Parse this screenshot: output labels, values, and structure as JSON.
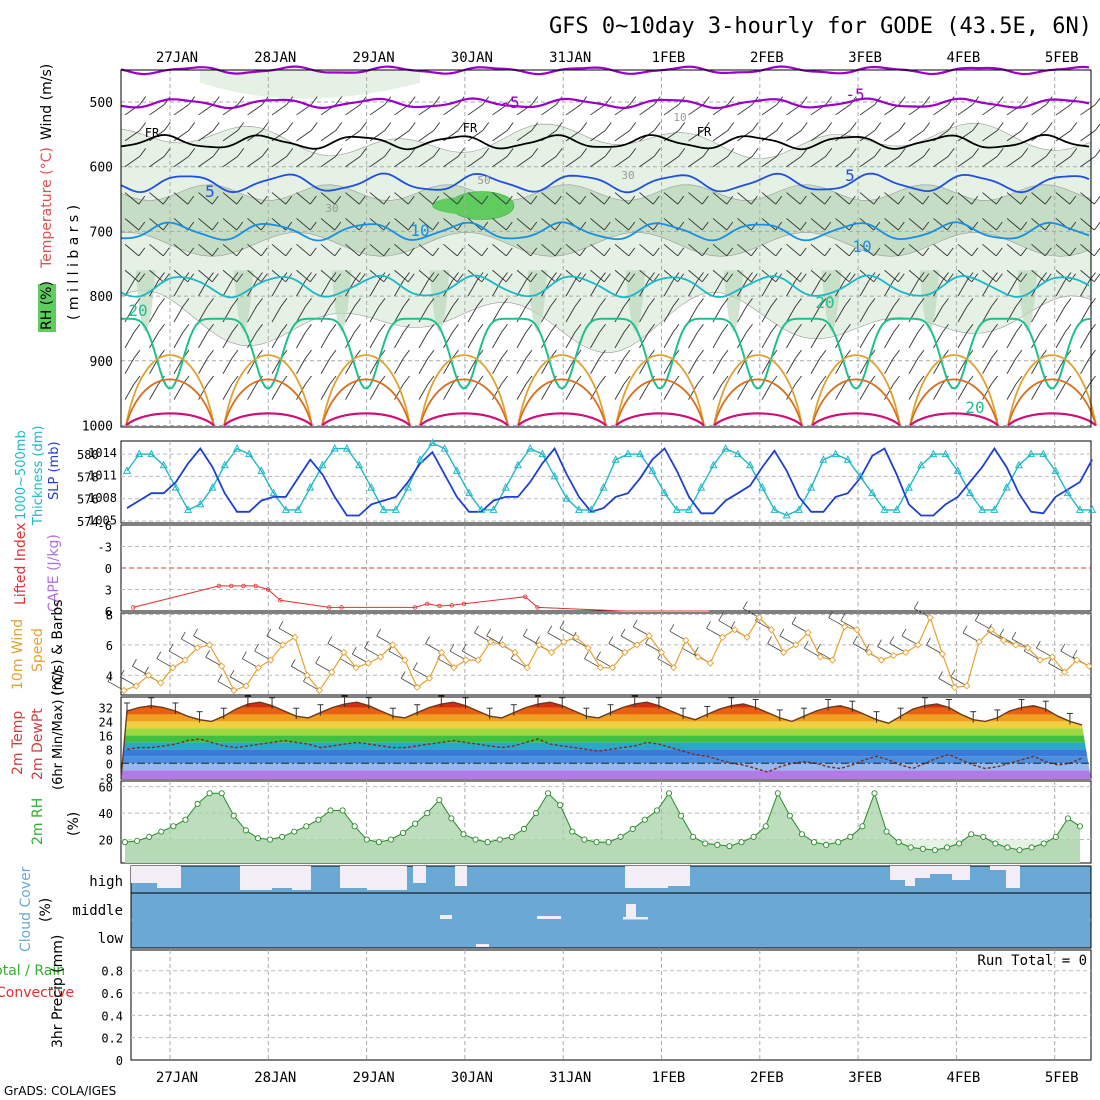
{
  "title": "GFS 0~10day 3-hourly for GODE (43.5E, 6N)",
  "footer": "GrADS: COLA/IGES",
  "dates": [
    "27JAN",
    "28JAN",
    "29JAN",
    "30JAN",
    "31JAN",
    "1FEB",
    "2FEB",
    "3FEB",
    "4FEB",
    "5FEB"
  ],
  "colors": {
    "temp_minus5": "#9a00c8",
    "temp_fr": "#000000",
    "temp_5": "#1f4fe0",
    "temp_10": "#1a8ee0",
    "temp_15": "#1ab8c8",
    "temp_20": "#1fbf8f",
    "temp_25": "#e0a030",
    "temp_30": "#d87020",
    "temp_35": "#d0107a",
    "rh_light": "#e4f1e4",
    "rh_mid": "#bcd8bc",
    "rh_dark": "#60cc60",
    "slp": "#1f3fd0",
    "thickness": "#20b8c8",
    "lifted": "#e03030",
    "wind_speed": "#e8a030",
    "cloud": "#6aa8d6",
    "rh2m": "#30b030"
  },
  "panels": {
    "upper_air": {
      "ylabel_rh": "RH (%)",
      "ylabel_temp": "Temperature (°C)",
      "ylabel_wind": "Wind (m/s)",
      "ylabel_units": "( m i l l i b a r s )",
      "yticks": [
        500,
        600,
        700,
        800,
        900,
        1000
      ],
      "labels": {
        "minus5a": "-5",
        "minus5b": "-5",
        "fr1": "FR",
        "fr2": "FR",
        "fr3": "FR",
        "t5a": "5",
        "t5b": "5",
        "t10a": "10",
        "t10b": "10",
        "t20a": "20",
        "t20b": "20",
        "t20c": "20",
        "rh10": "10",
        "rh30a": "30",
        "rh30b": "30",
        "rh50": "50"
      }
    },
    "slp_thickness": {
      "ylabel_thick": "Thickness (dm)",
      "ylabel_range": "1000~500mb",
      "ylabel_slp": "SLP (mb)",
      "left_ticks": [
        "580",
        "578",
        "576",
        "574"
      ],
      "right_ticks": [
        "1014",
        "1011",
        "1008",
        "1005"
      ]
    },
    "cape_li": {
      "ylabel_li": "Lifted Index",
      "ylabel_cape": "CAPE (J/kg)",
      "ticks": [
        "-6",
        "-3",
        "0",
        "3",
        "6"
      ]
    },
    "wind10m": {
      "ylabel_a": "10m Wind",
      "ylabel_b": "Speed",
      "ylabel_c": "(m/s) & Barbs",
      "ticks": [
        "8",
        "6",
        "4"
      ]
    },
    "temp2m": {
      "ylabel_a": "2m Temp",
      "ylabel_b": "2m DewPt",
      "ylabel_c": "(6hr Min/Max) (°C)",
      "ticks": [
        "32",
        "24",
        "16",
        "8",
        "0",
        "-8"
      ]
    },
    "rh2m": {
      "ylabel_a": "2m RH",
      "ylabel_b": "(%)",
      "ticks": [
        "60",
        "40",
        "20"
      ]
    },
    "cloud": {
      "ylabel_a": "Cloud Cover",
      "ylabel_b": "(%)",
      "levels": [
        "high",
        "middle",
        "low"
      ]
    },
    "precip": {
      "ylabel_a": "Total / Rain",
      "ylabel_b": "Convective",
      "ylabel_c": "3hr Precip (mm)",
      "ticks": [
        "0.8",
        "0.6",
        "0.4",
        "0.2",
        "0"
      ],
      "run_total": "Run Total = 0"
    }
  },
  "chart_data": [
    {
      "type": "line",
      "title": "Thickness 1000~500mb (dm) & SLP (mb)",
      "x": [
        0,
        3,
        6,
        9,
        12,
        15,
        18,
        21,
        24,
        27,
        30,
        33,
        36,
        39,
        42,
        45,
        48,
        51,
        54,
        57,
        60,
        63,
        66,
        69,
        72,
        75,
        78,
        81,
        84,
        87,
        90,
        93,
        96,
        99,
        102,
        105,
        108,
        111,
        114,
        117,
        120,
        123,
        126,
        129,
        132,
        135,
        138,
        141,
        144,
        147,
        150,
        153,
        156,
        159,
        162,
        165,
        168,
        171,
        174,
        177,
        180,
        183,
        186,
        189,
        192,
        195,
        198,
        201,
        204,
        207,
        210,
        213,
        216,
        219,
        222,
        225,
        228,
        231,
        234,
        237
      ],
      "series": [
        {
          "name": "SLP (mb)",
          "values": [
            1006.5,
            1007.5,
            1008.5,
            1008.5,
            1010,
            1012.5,
            1014.5,
            1012,
            1008.5,
            1006,
            1006,
            1007.5,
            1008,
            1008,
            1010.5,
            1013,
            1011,
            1008,
            1005.5,
            1005.5,
            1007,
            1007.5,
            1008,
            1010,
            1012.5,
            1014,
            1011,
            1008,
            1006,
            1006,
            1007.5,
            1008,
            1008,
            1010,
            1012.5,
            1014.5,
            1011,
            1008,
            1006,
            1006.5,
            1008,
            1008.5,
            1010.5,
            1013,
            1014.5,
            1011.5,
            1008,
            1005.8,
            1005.8,
            1007.5,
            1008.5,
            1009.5,
            1012,
            1014.2,
            1011.5,
            1008,
            1006,
            1006,
            1008,
            1008.5,
            1010.5,
            1013.5,
            1014.5,
            1011,
            1007,
            1005.5,
            1005.5,
            1007,
            1008,
            1010,
            1012,
            1014.5,
            1012,
            1008.5,
            1006,
            1005.8,
            1008,
            1009,
            1010,
            1013
          ]
        },
        {
          "name": "Thickness (dm)",
          "values": [
            578.5,
            580,
            580,
            579,
            577,
            575,
            575.5,
            577,
            579,
            580.5,
            580,
            578.5,
            576.5,
            575,
            575,
            577,
            579,
            580.5,
            580.5,
            579,
            577,
            575,
            575,
            577,
            579.5,
            581,
            580.5,
            578.5,
            576.5,
            575,
            575,
            577,
            579,
            580.5,
            580,
            578,
            576,
            575,
            575,
            577,
            579.5,
            580,
            580,
            578.5,
            576.5,
            575,
            575,
            577,
            579,
            580.5,
            580,
            579,
            577,
            575,
            574.5,
            575,
            577,
            579.5,
            580,
            579.5,
            578,
            576.5,
            575,
            575,
            577,
            579,
            580,
            580,
            578.5,
            576.5,
            575,
            575,
            577,
            579,
            580,
            580,
            578.5,
            576.5,
            575,
            575
          ]
        }
      ],
      "xlabel": "",
      "ylim_thickness": [
        574,
        582
      ],
      "ylim_slp": [
        1005,
        1015.5
      ]
    },
    {
      "type": "line",
      "title": "Lifted Index & CAPE",
      "series": [
        {
          "name": "Lifted Index",
          "points": [
            [
              0,
              5.5
            ],
            [
              21,
              2.5
            ],
            [
              24,
              2.5
            ],
            [
              27,
              2.5
            ],
            [
              30,
              2.5
            ],
            [
              33,
              3
            ],
            [
              36,
              4.5
            ],
            [
              48,
              5.5
            ],
            [
              51,
              5.5
            ],
            [
              69,
              5.5
            ],
            [
              72,
              5
            ],
            [
              75,
              5.3
            ],
            [
              78,
              5.2
            ],
            [
              81,
              5
            ],
            [
              96,
              4
            ],
            [
              99,
              5.5
            ],
            [
              120,
              6
            ],
            [
              141,
              6
            ]
          ]
        }
      ],
      "ylim": [
        -6,
        6
      ]
    },
    {
      "type": "line",
      "title": "10m Wind Speed (m/s)",
      "x_step_hours": 3,
      "series": [
        {
          "name": "Wind Speed",
          "values": [
            3,
            3.3,
            4,
            3.5,
            4.5,
            5,
            5.8,
            6,
            4.6,
            3,
            3.3,
            4.5,
            5,
            6,
            6.5,
            4,
            3,
            4.2,
            5.5,
            4.5,
            4.8,
            5.2,
            6,
            5,
            3.2,
            3.8,
            5.5,
            4.5,
            5,
            5,
            6.2,
            6,
            5.5,
            4.5,
            6,
            5.5,
            6.2,
            6.5,
            5.8,
            4.5,
            4.5,
            5.5,
            6,
            6.6,
            5.5,
            4.5,
            6.3,
            5.2,
            4.8,
            6.5,
            7,
            6.5,
            7.8,
            7,
            5.5,
            6,
            6.8,
            5.2,
            5,
            7.2,
            7,
            5.5,
            5,
            5.3,
            5.5,
            6,
            7.8,
            5.4,
            3.2,
            3.3,
            6.2,
            7,
            6.3,
            6,
            5.8,
            5,
            5.2,
            4.2,
            5,
            4.6
          ]
        }
      ],
      "ylim": [
        2.5,
        8
      ]
    },
    {
      "type": "area",
      "title": "2m Temp & DewPt (°C)",
      "x_step_hours": 3,
      "series": [
        {
          "name": "2m Temp",
          "values": [
            30,
            32,
            33,
            32,
            30,
            27,
            25,
            24,
            27,
            31,
            34,
            35,
            33,
            30,
            27,
            26,
            29,
            32,
            34,
            35,
            33,
            30,
            27,
            26,
            29,
            32,
            34,
            35,
            33,
            30,
            27,
            26,
            29,
            32,
            34,
            35,
            33,
            30,
            27,
            26,
            29,
            32,
            34,
            35,
            33,
            30,
            27,
            25,
            28,
            31,
            33,
            34,
            32,
            29,
            26,
            24,
            27,
            30,
            32,
            33,
            31,
            28,
            25,
            23,
            27,
            31,
            33,
            34,
            32,
            28,
            25,
            24,
            26,
            30,
            32,
            33,
            31,
            27,
            24,
            22
          ]
        },
        {
          "name": "2m DewPt",
          "values": [
            8,
            9,
            9,
            10,
            11,
            13,
            14,
            12,
            10,
            9,
            10,
            11,
            12,
            13,
            12,
            11,
            9,
            10,
            11,
            12,
            11,
            10,
            9,
            9,
            10,
            11,
            12,
            13,
            12,
            11,
            10,
            9,
            10,
            12,
            14,
            11,
            10,
            9,
            8,
            7,
            8,
            9,
            10,
            12,
            11,
            9,
            7,
            5,
            4,
            2,
            0,
            -1,
            -3,
            -5,
            -2,
            0,
            1,
            0,
            -2,
            -3,
            -1,
            2,
            4,
            2,
            -1,
            -3,
            0,
            3,
            5,
            2,
            -1,
            -3,
            -2,
            0,
            2,
            4,
            1,
            -1,
            0,
            3
          ]
        }
      ],
      "ylim": [
        -9,
        38
      ]
    },
    {
      "type": "area",
      "title": "2m RH (%)",
      "x_step_hours": 3,
      "series": [
        {
          "name": "2m RH",
          "values": [
            18,
            19,
            22,
            26,
            30,
            35,
            47,
            55,
            55,
            38,
            27,
            21,
            20,
            22,
            26,
            30,
            35,
            42,
            42,
            30,
            20,
            18,
            20,
            25,
            32,
            40,
            50,
            36,
            24,
            20,
            18,
            20,
            22,
            28,
            40,
            55,
            46,
            26,
            20,
            18,
            18,
            22,
            28,
            35,
            42,
            55,
            38,
            22,
            17,
            16,
            15,
            18,
            22,
            30,
            55,
            38,
            24,
            18,
            16,
            18,
            22,
            30,
            55,
            26,
            18,
            14,
            13,
            12,
            14,
            17,
            24,
            22,
            17,
            14,
            12,
            14,
            17,
            22,
            36,
            30
          ]
        }
      ],
      "ylim": [
        0,
        60
      ]
    },
    {
      "type": "heatmap",
      "title": "Cloud Cover (%)",
      "rows": [
        "high",
        "middle",
        "low"
      ],
      "description_values": "high cloud mostly 80-100%, middle and low ~100%"
    },
    {
      "type": "line",
      "title": "3hr Precip (mm)",
      "series": [
        {
          "name": "Total",
          "values": [
            0
          ]
        }
      ],
      "ylim": [
        0,
        1
      ]
    }
  ]
}
